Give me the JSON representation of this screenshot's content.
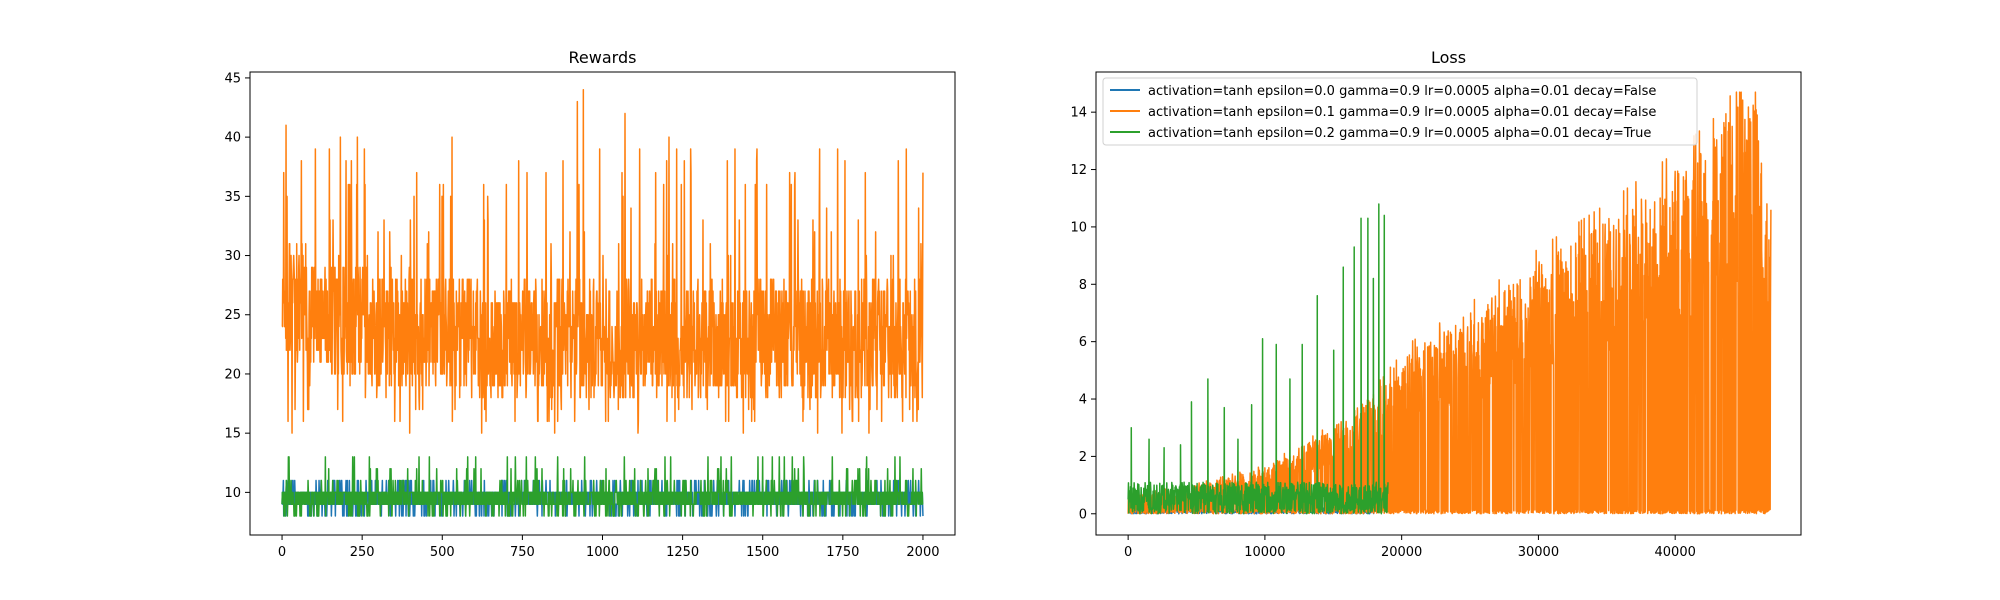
{
  "chart_data": [
    {
      "type": "line",
      "title": "Rewards",
      "xlabel": "",
      "ylabel": "",
      "xlim": [
        -100,
        2100
      ],
      "ylim": [
        6.4,
        45.5
      ],
      "xticks": [
        0,
        250,
        500,
        750,
        1000,
        1250,
        1500,
        1750,
        2000
      ],
      "yticks": [
        10,
        15,
        20,
        25,
        30,
        35,
        40,
        45
      ],
      "grid": false,
      "series": [
        {
          "color": "#1f77b4",
          "n_points": 2000,
          "x_range": [
            0,
            2000
          ],
          "typical_range": [
            9,
            10
          ],
          "min": 8,
          "max": 11,
          "points": [
            [
              0,
              9
            ],
            [
              50,
              10
            ],
            [
              100,
              8
            ],
            [
              200,
              11
            ],
            [
              300,
              9
            ],
            [
              500,
              8
            ],
            [
              700,
              11
            ],
            [
              1000,
              9
            ],
            [
              1200,
              8
            ],
            [
              1500,
              11
            ],
            [
              1800,
              9
            ],
            [
              2000,
              8
            ]
          ]
        },
        {
          "color": "#ff7f0e",
          "n_points": 2000,
          "x_range": [
            0,
            2000
          ],
          "typical_range": [
            19,
            30
          ],
          "min": 15,
          "max": 44,
          "points": [
            [
              0,
              24
            ],
            [
              5,
              37
            ],
            [
              12,
              41
            ],
            [
              30,
              25
            ],
            [
              60,
              38
            ],
            [
              100,
              28
            ],
            [
              150,
              33
            ],
            [
              200,
              38
            ],
            [
              250,
              28
            ],
            [
              300,
              32
            ],
            [
              400,
              33
            ],
            [
              480,
              24
            ],
            [
              530,
              40
            ],
            [
              600,
              22
            ],
            [
              700,
              36
            ],
            [
              800,
              21
            ],
            [
              860,
              16
            ],
            [
              940,
              44
            ],
            [
              960,
              28
            ],
            [
              1070,
              42
            ],
            [
              1100,
              22
            ],
            [
              1200,
              38
            ],
            [
              1300,
              21
            ],
            [
              1400,
              30
            ],
            [
              1500,
              26
            ],
            [
              1600,
              36
            ],
            [
              1700,
              22
            ],
            [
              1800,
              24
            ],
            [
              1900,
              30
            ],
            [
              2000,
              37
            ]
          ]
        },
        {
          "color": "#2ca02c",
          "n_points": 2000,
          "x_range": [
            0,
            2000
          ],
          "typical_range": [
            9,
            10
          ],
          "min": 8,
          "max": 13,
          "points": [
            [
              0,
              9
            ],
            [
              20,
              13
            ],
            [
              60,
              8
            ],
            [
              100,
              10
            ],
            [
              220,
              13
            ],
            [
              300,
              11
            ],
            [
              420,
              12
            ],
            [
              600,
              9
            ],
            [
              800,
              11
            ],
            [
              1100,
              12
            ],
            [
              1300,
              10
            ],
            [
              1500,
              13
            ],
            [
              1600,
              12
            ],
            [
              1800,
              11
            ],
            [
              2000,
              9
            ]
          ]
        }
      ]
    },
    {
      "type": "line",
      "title": "Loss",
      "xlabel": "",
      "ylabel": "",
      "xlim": [
        -2350,
        49200
      ],
      "ylim": [
        -0.74,
        15.4
      ],
      "xticks": [
        0,
        10000,
        20000,
        30000,
        40000
      ],
      "yticks": [
        0,
        2,
        4,
        6,
        8,
        10,
        12,
        14
      ],
      "grid": false,
      "legend": {
        "position": "upper left",
        "entries": [
          {
            "color": "#1f77b4",
            "label": "activation=tanh epsilon=0.0 gamma=0.9 lr=0.0005 alpha=0.01 decay=False"
          },
          {
            "color": "#ff7f0e",
            "label": "activation=tanh epsilon=0.1 gamma=0.9 lr=0.0005 alpha=0.01 decay=False"
          },
          {
            "color": "#2ca02c",
            "label": "activation=tanh epsilon=0.2 gamma=0.9 lr=0.0005 alpha=0.01 decay=True"
          }
        ]
      },
      "series": [
        {
          "color": "#1f77b4",
          "n_points": 18000,
          "x_range": [
            0,
            18000
          ],
          "typical_range": [
            0,
            0.2
          ],
          "min": 0,
          "max": 0.3,
          "points": [
            [
              0,
              0.1
            ],
            [
              5000,
              0.05
            ],
            [
              10000,
              0.08
            ],
            [
              15000,
              0.05
            ],
            [
              18000,
              0.1
            ]
          ]
        },
        {
          "color": "#ff7f0e",
          "n_points": 47000,
          "x_range": [
            0,
            47000
          ],
          "typical_range": [
            0,
            13
          ],
          "min": 0,
          "max": 14.7,
          "envelope": [
            [
              0,
              0.6
            ],
            [
              5000,
              1.0
            ],
            [
              10000,
              1.6
            ],
            [
              15000,
              3.0
            ],
            [
              18800,
              4.6
            ],
            [
              19000,
              5.2
            ],
            [
              25000,
              7.0
            ],
            [
              30000,
              8.8
            ],
            [
              35000,
              10.3
            ],
            [
              40000,
              12.0
            ],
            [
              43000,
              13.2
            ],
            [
              44000,
              14.7
            ],
            [
              46000,
              14.3
            ],
            [
              47000,
              10.6
            ]
          ],
          "points": [
            [
              0,
              0.0
            ],
            [
              10000,
              1.6
            ],
            [
              18800,
              4.6
            ],
            [
              25000,
              7.0
            ],
            [
              30000,
              8.8
            ],
            [
              35000,
              10.3
            ],
            [
              40000,
              12.0
            ],
            [
              44000,
              14.7
            ],
            [
              47000,
              10.6
            ]
          ]
        },
        {
          "color": "#2ca02c",
          "n_points": 19000,
          "x_range": [
            0,
            19000
          ],
          "typical_range": [
            0.2,
            1.1
          ],
          "min": 0,
          "max": 10.8,
          "spikes": [
            [
              200,
              3.0
            ],
            [
              1500,
              2.6
            ],
            [
              2600,
              2.3
            ],
            [
              3800,
              2.4
            ],
            [
              4600,
              3.9
            ],
            [
              5800,
              4.7
            ],
            [
              7000,
              3.7
            ],
            [
              8000,
              2.6
            ],
            [
              9000,
              3.8
            ],
            [
              9800,
              6.1
            ],
            [
              10800,
              5.9
            ],
            [
              11800,
              4.7
            ],
            [
              12700,
              5.9
            ],
            [
              13800,
              7.6
            ],
            [
              15000,
              5.7
            ],
            [
              15700,
              8.6
            ],
            [
              16500,
              9.3
            ],
            [
              17000,
              10.3
            ],
            [
              17500,
              10.3
            ],
            [
              17900,
              8.2
            ],
            [
              18300,
              10.8
            ],
            [
              18700,
              10.4
            ]
          ],
          "points": [
            [
              0,
              0.5
            ],
            [
              5000,
              0.8
            ],
            [
              10000,
              0.9
            ],
            [
              15000,
              1.0
            ],
            [
              19000,
              1.1
            ]
          ]
        }
      ]
    }
  ]
}
